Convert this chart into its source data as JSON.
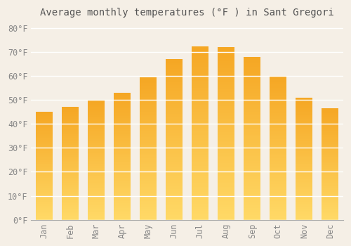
{
  "title": "Average monthly temperatures (°F ) in Sant Gregori",
  "months": [
    "Jan",
    "Feb",
    "Mar",
    "Apr",
    "May",
    "Jun",
    "Jul",
    "Aug",
    "Sep",
    "Oct",
    "Nov",
    "Dec"
  ],
  "values": [
    45,
    47,
    50,
    53,
    59.5,
    67,
    72.5,
    72,
    68,
    60,
    51,
    46.5
  ],
  "bar_color_top": "#F5A623",
  "bar_color_bottom": "#FFD966",
  "ylim": [
    0,
    82
  ],
  "yticks": [
    0,
    10,
    20,
    30,
    40,
    50,
    60,
    70,
    80
  ],
  "background_color": "#f5efe6",
  "grid_color": "#ffffff",
  "title_fontsize": 10,
  "tick_fontsize": 8.5
}
